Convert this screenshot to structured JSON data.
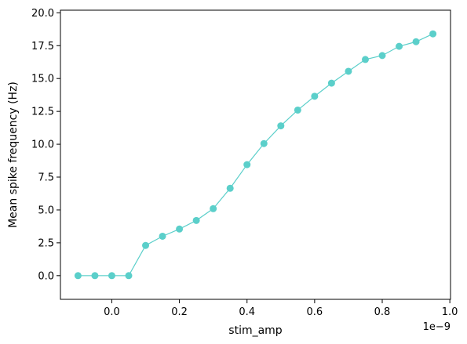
{
  "chart_data": {
    "type": "line",
    "xlabel": "stim_amp",
    "ylabel": "Mean spike frequency (Hz)",
    "x_offset_label": "1e−9",
    "x_scale_factor": 1e-09,
    "xlim": [
      -0.152,
      1.002
    ],
    "ylim": [
      -1.8,
      20.2
    ],
    "x_ticks": [
      0.0,
      0.2,
      0.4,
      0.6,
      0.8,
      1.0
    ],
    "x_tick_labels": [
      "0.0",
      "0.2",
      "0.4",
      "0.6",
      "0.8",
      "1.0"
    ],
    "y_ticks": [
      0.0,
      2.5,
      5.0,
      7.5,
      10.0,
      12.5,
      15.0,
      17.5,
      20.0
    ],
    "y_tick_labels": [
      "0.0",
      "2.5",
      "5.0",
      "7.5",
      "10.0",
      "12.5",
      "15.0",
      "17.5",
      "20.0"
    ],
    "grid": false,
    "colors": {
      "series": "#5bcfca",
      "axes": "#000000"
    },
    "series": [
      {
        "x": [
          -0.1,
          -0.05,
          0.0,
          0.05,
          0.1,
          0.15,
          0.2,
          0.25,
          0.3,
          0.35,
          0.4,
          0.45,
          0.5,
          0.55,
          0.6,
          0.65,
          0.7,
          0.75,
          0.8,
          0.85,
          0.9,
          0.95
        ],
        "y": [
          0.0,
          0.0,
          0.0,
          0.0,
          2.3,
          3.0,
          3.55,
          4.2,
          5.1,
          6.65,
          8.45,
          10.05,
          11.4,
          12.6,
          13.65,
          14.65,
          15.55,
          16.45,
          16.75,
          17.45,
          17.8,
          18.4
        ]
      }
    ]
  }
}
